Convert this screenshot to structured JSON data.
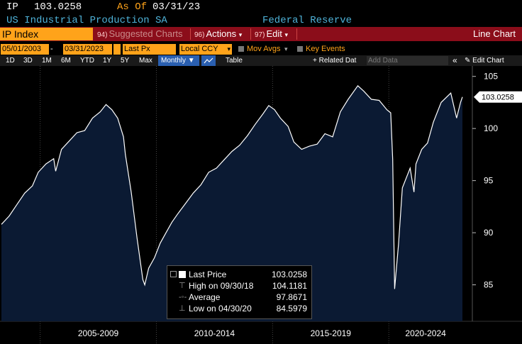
{
  "header": {
    "ticker": "IP",
    "price": "103.0258",
    "as_of_label": "As Of",
    "as_of_date": "03/31/23",
    "description": "US Industrial Production SA",
    "source": "Federal Reserve"
  },
  "menu": {
    "security": "IP Index",
    "suggested_num": "94)",
    "suggested_label": "Suggested Charts",
    "actions_num": "96)",
    "actions_label": "Actions",
    "edit_num": "97)",
    "edit_label": "Edit",
    "chart_type": "Line Chart"
  },
  "toolbar": {
    "start_date": "05/01/2003",
    "end_date": "03/31/2023",
    "field": "Last Px",
    "currency": "Local CCY",
    "mov_avgs": "Mov Avgs",
    "key_events": "Key Events"
  },
  "ranges": {
    "items": [
      "1D",
      "3D",
      "1M",
      "6M",
      "YTD",
      "1Y",
      "5Y",
      "Max"
    ],
    "period": "Monthly ▼",
    "table": "Table",
    "related": "+ Related Dat",
    "add_data_placeholder": "Add Data",
    "edit_chart": "Edit Chart"
  },
  "legend": {
    "last_price_label": "Last Price",
    "last_price_value": "103.0258",
    "high_label": "High on 09/30/18",
    "high_value": "104.1181",
    "average_label": "Average",
    "average_value": "97.8671",
    "low_label": "Low on 04/30/20",
    "low_value": "84.5979"
  },
  "colors": {
    "accent_orange": "#ffa31a",
    "menu_red": "#8b0d1a",
    "area_fill": "#0b1a33",
    "line": "#ffffff"
  },
  "chart_data": {
    "type": "area",
    "title": "",
    "xlabel": "",
    "ylabel": "",
    "ylim": [
      81.5,
      106
    ],
    "y_ticks": [
      85,
      90,
      95,
      100,
      105
    ],
    "x_period_labels": [
      "2005-2009",
      "2010-2014",
      "2015-2019",
      "2020-2024"
    ],
    "last_value_label": "103.0258",
    "series": [
      {
        "points": [
          [
            "2003-05",
            90.8
          ],
          [
            "2003-09",
            91.6
          ],
          [
            "2004-01",
            92.7
          ],
          [
            "2004-05",
            93.8
          ],
          [
            "2004-09",
            94.5
          ],
          [
            "2004-12",
            95.8
          ],
          [
            "2005-04",
            96.6
          ],
          [
            "2005-08",
            97.1
          ],
          [
            "2005-09",
            95.9
          ],
          [
            "2005-12",
            98.0
          ],
          [
            "2006-04",
            98.8
          ],
          [
            "2006-08",
            99.6
          ],
          [
            "2006-12",
            99.8
          ],
          [
            "2007-04",
            101.0
          ],
          [
            "2007-08",
            101.6
          ],
          [
            "2007-11",
            102.3
          ],
          [
            "2008-02",
            101.8
          ],
          [
            "2008-05",
            101.0
          ],
          [
            "2008-08",
            99.2
          ],
          [
            "2008-09",
            97.5
          ],
          [
            "2008-12",
            93.9
          ],
          [
            "2009-03",
            89.5
          ],
          [
            "2009-06",
            85.5
          ],
          [
            "2009-07",
            85.0
          ],
          [
            "2009-09",
            86.6
          ],
          [
            "2009-12",
            87.6
          ],
          [
            "2010-03",
            89.0
          ],
          [
            "2010-06",
            90.0
          ],
          [
            "2010-09",
            91.0
          ],
          [
            "2010-12",
            91.8
          ],
          [
            "2011-04",
            92.8
          ],
          [
            "2011-08",
            93.8
          ],
          [
            "2011-12",
            94.6
          ],
          [
            "2012-04",
            95.8
          ],
          [
            "2012-08",
            96.2
          ],
          [
            "2012-12",
            97.0
          ],
          [
            "2013-04",
            97.8
          ],
          [
            "2013-08",
            98.4
          ],
          [
            "2013-12",
            99.3
          ],
          [
            "2014-04",
            100.4
          ],
          [
            "2014-08",
            101.4
          ],
          [
            "2014-11",
            102.2
          ],
          [
            "2015-02",
            101.8
          ],
          [
            "2015-05",
            101.0
          ],
          [
            "2015-09",
            100.2
          ],
          [
            "2015-12",
            98.7
          ],
          [
            "2016-04",
            98.0
          ],
          [
            "2016-08",
            98.3
          ],
          [
            "2016-12",
            98.5
          ],
          [
            "2017-04",
            99.5
          ],
          [
            "2017-08",
            99.2
          ],
          [
            "2017-12",
            101.6
          ],
          [
            "2018-04",
            102.8
          ],
          [
            "2018-09",
            104.1
          ],
          [
            "2018-12",
            103.6
          ],
          [
            "2019-04",
            102.8
          ],
          [
            "2019-08",
            102.7
          ],
          [
            "2019-12",
            101.8
          ],
          [
            "2020-02",
            101.5
          ],
          [
            "2020-03",
            97.0
          ],
          [
            "2020-04",
            84.6
          ],
          [
            "2020-06",
            88.9
          ],
          [
            "2020-08",
            94.3
          ],
          [
            "2020-12",
            96.2
          ],
          [
            "2021-02",
            93.9
          ],
          [
            "2021-03",
            96.6
          ],
          [
            "2021-06",
            98.0
          ],
          [
            "2021-09",
            98.6
          ],
          [
            "2021-12",
            100.6
          ],
          [
            "2022-04",
            102.5
          ],
          [
            "2022-09",
            103.4
          ],
          [
            "2022-12",
            101.0
          ],
          [
            "2023-02",
            102.5
          ],
          [
            "2023-03",
            103.0258
          ]
        ]
      }
    ]
  }
}
